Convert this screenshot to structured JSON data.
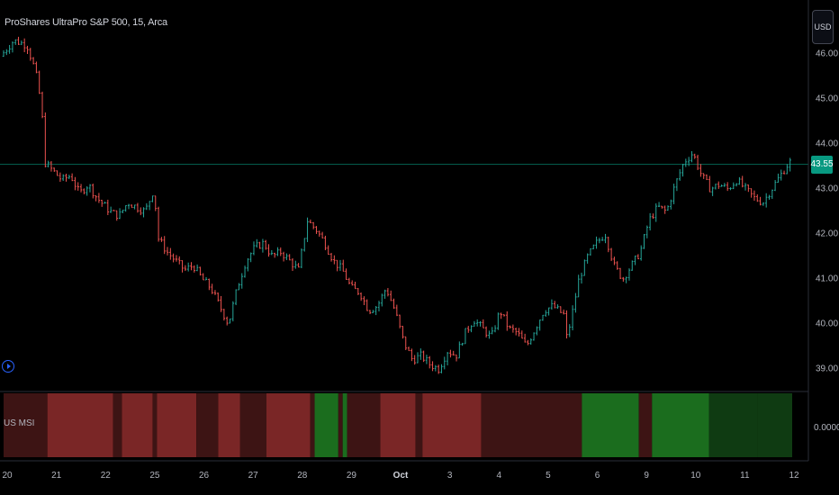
{
  "header": {
    "symbol_title": "ProShares UltraPro S&P 500, 15, Arca"
  },
  "currency": "USD",
  "last_price": "43.55",
  "colors": {
    "background": "#000000",
    "up": "#26a69a",
    "down": "#ef5350",
    "price_tag": "#089981",
    "red_dark": "#3d1414",
    "red_bright": "#7a2626",
    "green_bright": "#1b6d1e",
    "green_dark": "#0f3b12"
  },
  "price_axis": [
    "46.00",
    "45.00",
    "44.00",
    "43.00",
    "42.00",
    "41.00",
    "40.00",
    "39.00"
  ],
  "time_axis": [
    {
      "label": "20",
      "bold": false
    },
    {
      "label": "21",
      "bold": false
    },
    {
      "label": "22",
      "bold": false
    },
    {
      "label": "25",
      "bold": false
    },
    {
      "label": "26",
      "bold": false
    },
    {
      "label": "27",
      "bold": false
    },
    {
      "label": "28",
      "bold": false
    },
    {
      "label": "29",
      "bold": false
    },
    {
      "label": "Oct",
      "bold": true
    },
    {
      "label": "3",
      "bold": false
    },
    {
      "label": "4",
      "bold": false
    },
    {
      "label": "5",
      "bold": false
    },
    {
      "label": "6",
      "bold": false
    },
    {
      "label": "9",
      "bold": false
    },
    {
      "label": "10",
      "bold": false
    },
    {
      "label": "11",
      "bold": false
    },
    {
      "label": "12",
      "bold": false
    }
  ],
  "indicator": {
    "label": "US MSI",
    "value_label": "0.0000"
  },
  "chart_data": {
    "type": "line",
    "title": "ProShares UltraPro S&P 500, 15, Arca",
    "xlabel": "",
    "ylabel": "",
    "ylim": [
      38.6,
      46.8
    ],
    "last": 43.55,
    "price_path": [
      [
        0,
        45.95
      ],
      [
        1.5,
        46.3
      ],
      [
        3,
        46.2
      ],
      [
        4,
        45.6
      ],
      [
        4.7,
        44.8
      ],
      [
        5.0,
        43.6
      ],
      [
        6,
        43.4
      ],
      [
        7,
        43.2
      ],
      [
        8,
        43.3
      ],
      [
        9,
        42.9
      ],
      [
        10,
        43.1
      ],
      [
        11,
        42.8
      ],
      [
        12.5,
        42.5
      ],
      [
        13.5,
        42.4
      ],
      [
        14.5,
        42.7
      ],
      [
        15.5,
        42.6
      ],
      [
        16.5,
        42.5
      ],
      [
        17.5,
        43.0
      ],
      [
        18.0,
        41.9
      ],
      [
        19,
        41.6
      ],
      [
        20,
        41.4
      ],
      [
        21,
        41.2
      ],
      [
        22,
        41.3
      ],
      [
        23,
        41.0
      ],
      [
        24,
        40.8
      ],
      [
        25,
        40.4
      ],
      [
        26,
        40.0
      ],
      [
        27,
        40.8
      ],
      [
        28,
        41.4
      ],
      [
        29,
        41.7
      ],
      [
        30,
        41.8
      ],
      [
        31,
        41.5
      ],
      [
        32,
        41.6
      ],
      [
        33,
        41.4
      ],
      [
        34,
        41.2
      ],
      [
        35,
        42.3
      ],
      [
        36,
        42.1
      ],
      [
        37,
        41.8
      ],
      [
        38,
        41.4
      ],
      [
        39,
        41.2
      ],
      [
        40,
        40.8
      ],
      [
        41,
        40.7
      ],
      [
        42,
        40.3
      ],
      [
        43,
        40.4
      ],
      [
        44,
        40.8
      ],
      [
        45,
        40.3
      ],
      [
        46,
        39.6
      ],
      [
        47,
        39.2
      ],
      [
        48,
        39.3
      ],
      [
        49,
        39.1
      ],
      [
        50,
        39.0
      ],
      [
        51,
        39.4
      ],
      [
        52,
        39.3
      ],
      [
        53,
        39.8
      ],
      [
        54,
        40.1
      ],
      [
        55,
        39.9
      ],
      [
        56,
        39.7
      ],
      [
        57,
        40.3
      ],
      [
        58,
        39.9
      ],
      [
        59,
        39.8
      ],
      [
        60,
        39.5
      ],
      [
        61,
        39.9
      ],
      [
        62,
        40.3
      ],
      [
        63,
        40.4
      ],
      [
        64.3,
        40.2
      ],
      [
        64.3,
        39.5
      ],
      [
        65,
        40.0
      ],
      [
        66,
        41.0
      ],
      [
        67,
        41.5
      ],
      [
        68,
        41.8
      ],
      [
        69,
        42.0
      ],
      [
        70,
        41.3
      ],
      [
        71,
        41.0
      ],
      [
        72,
        41.3
      ],
      [
        73,
        41.6
      ],
      [
        74,
        42.3
      ],
      [
        75,
        42.6
      ],
      [
        76,
        42.5
      ],
      [
        77,
        43.1
      ],
      [
        78,
        43.6
      ],
      [
        79,
        43.8
      ],
      [
        80,
        43.3
      ],
      [
        81,
        43.0
      ],
      [
        82,
        43.1
      ],
      [
        83,
        43.0
      ],
      [
        84,
        43.2
      ],
      [
        85,
        43.0
      ],
      [
        86,
        42.8
      ],
      [
        87,
        42.7
      ],
      [
        88,
        43.0
      ],
      [
        89,
        43.3
      ],
      [
        90,
        43.6
      ]
    ],
    "x_range": [
      0,
      90
    ],
    "indicator_bands": [
      [
        0,
        5,
        "red_dark"
      ],
      [
        5,
        12.5,
        "red_bright"
      ],
      [
        12.5,
        13.5,
        "red_dark"
      ],
      [
        13.5,
        17,
        "red_bright"
      ],
      [
        17,
        17.5,
        "red_dark"
      ],
      [
        17.5,
        22,
        "red_bright"
      ],
      [
        22,
        24.5,
        "red_dark"
      ],
      [
        24.5,
        27,
        "red_bright"
      ],
      [
        27,
        30,
        "red_dark"
      ],
      [
        30,
        35,
        "red_bright"
      ],
      [
        35,
        35.5,
        "red_dark"
      ],
      [
        35.5,
        38.2,
        "green_bright"
      ],
      [
        38.2,
        38.7,
        "red_dark"
      ],
      [
        38.7,
        39.2,
        "green_bright"
      ],
      [
        39.2,
        43,
        "red_dark"
      ],
      [
        43,
        47,
        "red_bright"
      ],
      [
        47,
        47.8,
        "red_dark"
      ],
      [
        47.8,
        54.5,
        "red_bright"
      ],
      [
        54.5,
        66,
        "red_dark"
      ],
      [
        66,
        72.5,
        "green_bright"
      ],
      [
        72.5,
        74,
        "red_dark"
      ],
      [
        74,
        80.5,
        "green_bright"
      ],
      [
        80.5,
        86,
        "green_dark"
      ],
      [
        86,
        90,
        "green_dark"
      ]
    ]
  }
}
